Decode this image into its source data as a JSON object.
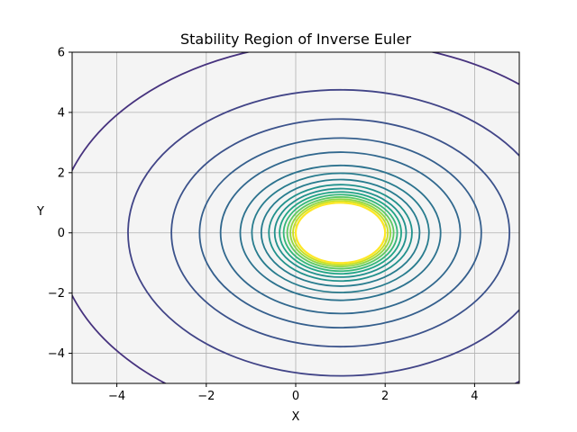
{
  "chart_data": {
    "type": "contour",
    "title": "Stability Region of Inverse Euler",
    "xlabel": "X",
    "ylabel": "Y",
    "xlim": [
      -5,
      5
    ],
    "ylim": [
      -5,
      6
    ],
    "xticks": [
      -4,
      -2,
      0,
      2,
      4
    ],
    "xtick_labels": [
      "−4",
      "−2",
      "0",
      "2",
      "4"
    ],
    "yticks": [
      -4,
      -2,
      0,
      2,
      4,
      6
    ],
    "ytick_labels": [
      "−4",
      "−2",
      "0",
      "2",
      "4",
      "6"
    ],
    "grid": true,
    "colormap": "viridis",
    "stable_region": {
      "description": "exterior of unit disk centered at (1, 0)",
      "center": [
        1,
        0
      ],
      "boundary_radius": 1.0
    },
    "contours": {
      "center": [
        1,
        0
      ],
      "radii": [
        1.0,
        1.06,
        1.12,
        1.19,
        1.27,
        1.36,
        1.47,
        1.6,
        1.77,
        1.98,
        2.24,
        2.68,
        3.15,
        3.78,
        4.75,
        6.35
      ],
      "colors": [
        "#fde725",
        "#c7e020",
        "#8fd744",
        "#5ec962",
        "#35b779",
        "#20a486",
        "#21918c",
        "#21918c",
        "#287c8e",
        "#287c8e",
        "#2c728e",
        "#31688e",
        "#355f8d",
        "#3b528b",
        "#414487",
        "#46327e"
      ]
    },
    "inner_fill": "#ffffff",
    "background_fill": "#f4f4f4",
    "grid_color": "#b0b0b0"
  }
}
